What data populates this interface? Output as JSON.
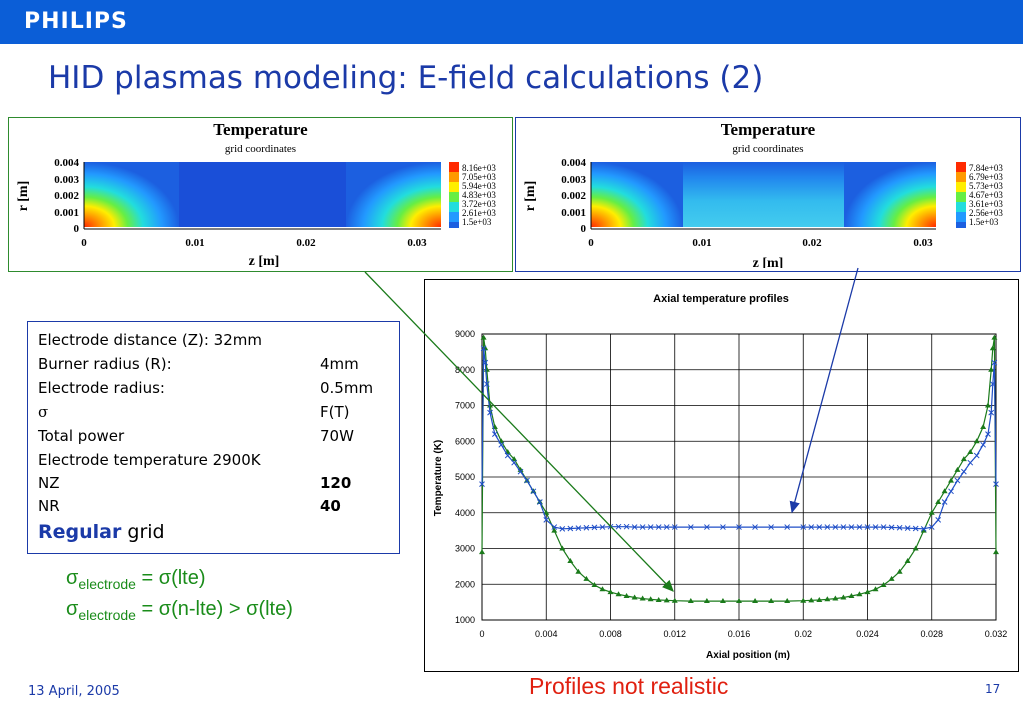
{
  "header": {
    "logo": "PHILIPS",
    "title": "HID plasmas modeling: E-field calculations (2)"
  },
  "contour_left": {
    "title": "Temperature",
    "subtitle": "grid coordinates",
    "ylabel": "r [m]",
    "xlabel": "z [m]",
    "yticks": [
      "0.004",
      "0.003",
      "0.002",
      "0.001",
      "0"
    ],
    "xticks": [
      "0",
      "0.01",
      "0.02",
      "0.03"
    ],
    "legend": [
      "8.16e+03",
      "7.05e+03",
      "5.94e+03",
      "4.83e+03",
      "3.72e+03",
      "2.61e+03",
      "1.5e+03"
    ]
  },
  "contour_right": {
    "title": "Temperature",
    "subtitle": "grid coordinates",
    "ylabel": "r [m]",
    "xlabel": "z [m]",
    "yticks": [
      "0.004",
      "0.003",
      "0.002",
      "0.001",
      "0"
    ],
    "xticks": [
      "0",
      "0.01",
      "0.02",
      "0.03"
    ],
    "legend": [
      "7.84e+03",
      "6.79e+03",
      "5.73e+03",
      "4.67e+03",
      "3.61e+03",
      "2.56e+03",
      "1.5e+03"
    ]
  },
  "params": {
    "rows": [
      {
        "label": "Electrode distance (Z):  32mm",
        "value": ""
      },
      {
        "label": "Burner radius (R):",
        "value": "4mm"
      },
      {
        "label": "Electrode radius:",
        "value": "0.5mm"
      },
      {
        "label": "σ",
        "value": "F(T)"
      },
      {
        "label": "Total power",
        "value": "70W"
      },
      {
        "label": "Electrode temperature 2900K",
        "value": ""
      },
      {
        "label": "NZ",
        "value": "120"
      },
      {
        "label": "NR",
        "value": "40"
      }
    ],
    "grid_bold": "Regular",
    "grid_rest": " grid"
  },
  "sigma": {
    "line1": {
      "s": "σ",
      "sub": "electrode",
      "rest": " = σ(lte)"
    },
    "line2": {
      "s": "σ",
      "sub": "electrode",
      "rest": " = σ(n-lte) > σ(lte)"
    }
  },
  "footer": {
    "date": "13 April, 2005",
    "note": "Profiles not realistic",
    "page": "17"
  },
  "chart_data": {
    "type": "line",
    "title": "Axial temperature profiles",
    "xlabel": "Axial position (m)",
    "ylabel": "Temperature (K)",
    "xlim": [
      0,
      0.032
    ],
    "ylim": [
      1000,
      9000
    ],
    "xticks": [
      "0",
      "0.004",
      "0.008",
      "0.012",
      "0.016",
      "0.02",
      "0.024",
      "0.028",
      "0.032"
    ],
    "yticks": [
      "1000",
      "2000",
      "3000",
      "4000",
      "5000",
      "6000",
      "7000",
      "8000",
      "9000"
    ],
    "grid": true,
    "series": [
      {
        "color": "#1a7a1a",
        "marker": "triangle",
        "x": [
          0,
          0.0001,
          0.0002,
          0.0003,
          0.0005,
          0.0008,
          0.0012,
          0.0016,
          0.002,
          0.0024,
          0.0028,
          0.0032,
          0.0036,
          0.004,
          0.0045,
          0.005,
          0.0055,
          0.006,
          0.0065,
          0.007,
          0.0075,
          0.008,
          0.0085,
          0.009,
          0.0095,
          0.01,
          0.0105,
          0.011,
          0.0115,
          0.012,
          0.013,
          0.014,
          0.015,
          0.016,
          0.017,
          0.018,
          0.019,
          0.02,
          0.0205,
          0.021,
          0.0215,
          0.022,
          0.0225,
          0.023,
          0.0235,
          0.024,
          0.0245,
          0.025,
          0.0255,
          0.026,
          0.0265,
          0.027,
          0.0275,
          0.028,
          0.0284,
          0.0288,
          0.0292,
          0.0296,
          0.03,
          0.0304,
          0.0308,
          0.0312,
          0.0315,
          0.0317,
          0.0318,
          0.0319,
          0.032
        ],
        "y": [
          2900,
          8900,
          8600,
          8000,
          7000,
          6400,
          6000,
          5700,
          5500,
          5200,
          4900,
          4600,
          4300,
          4000,
          3500,
          3000,
          2650,
          2350,
          2150,
          1980,
          1860,
          1780,
          1720,
          1670,
          1630,
          1600,
          1580,
          1560,
          1550,
          1540,
          1530,
          1530,
          1530,
          1530,
          1530,
          1530,
          1530,
          1540,
          1550,
          1560,
          1580,
          1600,
          1630,
          1670,
          1720,
          1780,
          1860,
          1980,
          2150,
          2350,
          2650,
          3000,
          3500,
          4000,
          4300,
          4600,
          4900,
          5200,
          5500,
          5700,
          6000,
          6400,
          7000,
          8000,
          8600,
          8900,
          2900
        ]
      },
      {
        "color": "#1f4ec7",
        "marker": "x",
        "x": [
          0,
          0.0001,
          0.0002,
          0.0003,
          0.0005,
          0.0008,
          0.0012,
          0.0016,
          0.002,
          0.0024,
          0.0028,
          0.0032,
          0.0036,
          0.004,
          0.0045,
          0.005,
          0.0055,
          0.006,
          0.0065,
          0.007,
          0.0075,
          0.008,
          0.0085,
          0.009,
          0.0095,
          0.01,
          0.0105,
          0.011,
          0.0115,
          0.012,
          0.013,
          0.014,
          0.015,
          0.016,
          0.017,
          0.018,
          0.019,
          0.02,
          0.0205,
          0.021,
          0.0215,
          0.022,
          0.0225,
          0.023,
          0.0235,
          0.024,
          0.0245,
          0.025,
          0.0255,
          0.026,
          0.0265,
          0.027,
          0.0275,
          0.028,
          0.0284,
          0.0288,
          0.0292,
          0.0296,
          0.03,
          0.0304,
          0.0308,
          0.0312,
          0.0315,
          0.0317,
          0.0318,
          0.0319,
          0.032
        ],
        "y": [
          4800,
          8600,
          8200,
          7600,
          6800,
          6200,
          5900,
          5600,
          5400,
          5150,
          4900,
          4600,
          4300,
          3800,
          3600,
          3550,
          3560,
          3570,
          3580,
          3590,
          3600,
          3610,
          3610,
          3610,
          3600,
          3600,
          3600,
          3600,
          3600,
          3600,
          3600,
          3600,
          3600,
          3600,
          3600,
          3600,
          3600,
          3600,
          3600,
          3600,
          3600,
          3600,
          3600,
          3600,
          3600,
          3600,
          3600,
          3600,
          3590,
          3580,
          3570,
          3560,
          3550,
          3600,
          3800,
          4300,
          4600,
          4900,
          5150,
          5400,
          5600,
          5900,
          6200,
          6800,
          7600,
          8200,
          4800
        ]
      }
    ]
  }
}
